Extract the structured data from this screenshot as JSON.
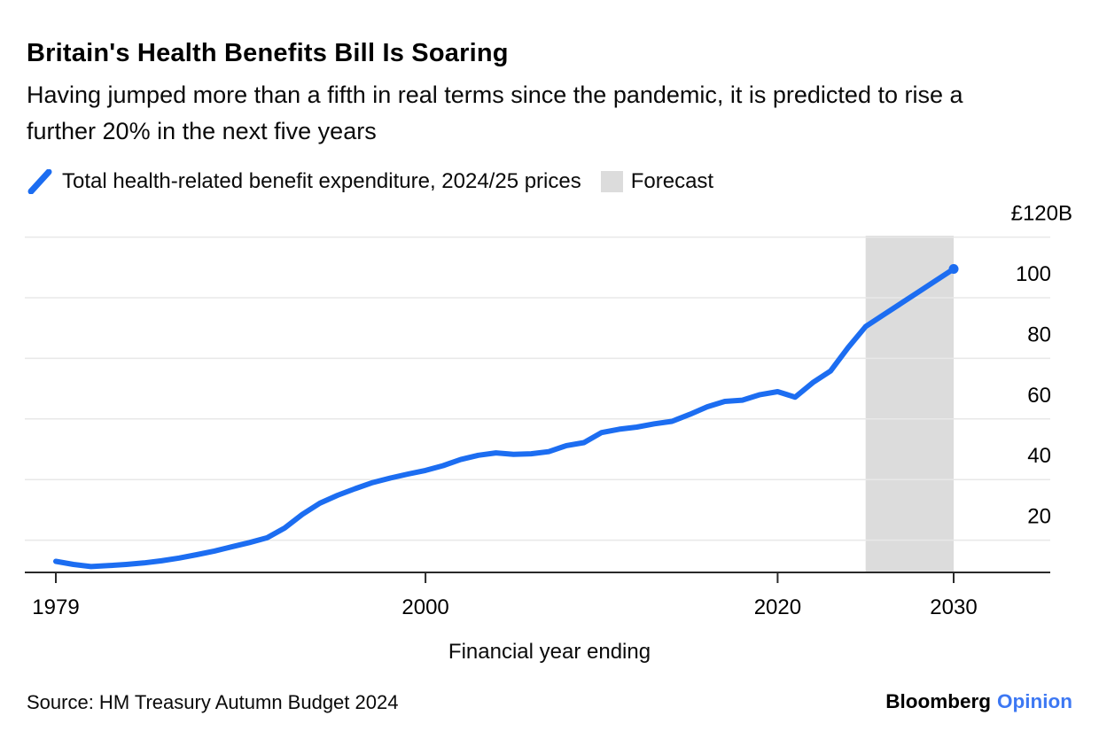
{
  "chart_data": {
    "type": "line",
    "title": "Britain's Health Benefits Bill Is Soaring",
    "subtitle": "Having jumped more than a fifth in real terms since the pandemic, it is predicted to rise a further 20% in the next five years",
    "xlabel": "Financial year ending",
    "ylabel": "",
    "x": [
      1979,
      1980,
      1981,
      1982,
      1983,
      1984,
      1985,
      1986,
      1987,
      1988,
      1989,
      1990,
      1991,
      1992,
      1993,
      1994,
      1995,
      1996,
      1997,
      1998,
      1999,
      2000,
      2001,
      2002,
      2003,
      2004,
      2005,
      2006,
      2007,
      2008,
      2009,
      2010,
      2011,
      2012,
      2013,
      2014,
      2015,
      2016,
      2017,
      2018,
      2019,
      2020,
      2021,
      2022,
      2023,
      2024,
      2025,
      2026,
      2027,
      2028,
      2029,
      2030
    ],
    "series": [
      {
        "name": "Total health-related benefit expenditure, 2024/25 prices",
        "values": [
          13.0,
          12.0,
          11.3,
          11.6,
          12.0,
          12.5,
          13.2,
          14.1,
          15.2,
          16.4,
          17.8,
          19.2,
          20.8,
          24.0,
          28.5,
          32.2,
          34.8,
          37.0,
          39.0,
          40.5,
          41.8,
          43.0,
          44.6,
          46.6,
          48.0,
          48.8,
          48.3,
          48.5,
          49.2,
          51.2,
          52.2,
          55.5,
          56.6,
          57.3,
          58.4,
          59.2,
          61.5,
          64.0,
          65.8,
          66.2,
          68.0,
          69.0,
          67.2,
          72.0,
          75.8,
          83.5,
          90.5,
          94.3,
          98.1,
          101.9,
          105.7,
          109.5
        ]
      }
    ],
    "x_ticks": [
      {
        "value": 1979,
        "label": "1979"
      },
      {
        "value": 2000,
        "label": "2000"
      },
      {
        "value": 2020,
        "label": "2020"
      },
      {
        "value": 2030,
        "label": "2030"
      }
    ],
    "y_ticks": [
      {
        "value": 20,
        "label": "20"
      },
      {
        "value": 40,
        "label": "40"
      },
      {
        "value": 60,
        "label": "60"
      },
      {
        "value": 80,
        "label": "80"
      },
      {
        "value": 100,
        "label": "100"
      },
      {
        "value": 120,
        "label": "£120B"
      }
    ],
    "ylim": [
      9.4,
      120.5
    ],
    "xlim": [
      1977.2,
      2035.5
    ],
    "grid": "horizontal",
    "forecast_range": [
      2025,
      2030
    ],
    "legend": {
      "position": "top-left",
      "series_label": "Total health-related benefit expenditure, 2024/25 prices",
      "forecast_label": "Forecast"
    },
    "colors": {
      "series": "#1c6df1",
      "forecast_band": "#dcdcdc",
      "gridline": "#e8e8e8",
      "axis": "#2a2a2a",
      "text": "#000000"
    }
  },
  "footer": {
    "source": "Source: HM Treasury Autumn Budget 2024",
    "brand": "Bloomberg",
    "brand_suffix": "Opinion",
    "brand_suffix_color": "#3d78f3"
  }
}
